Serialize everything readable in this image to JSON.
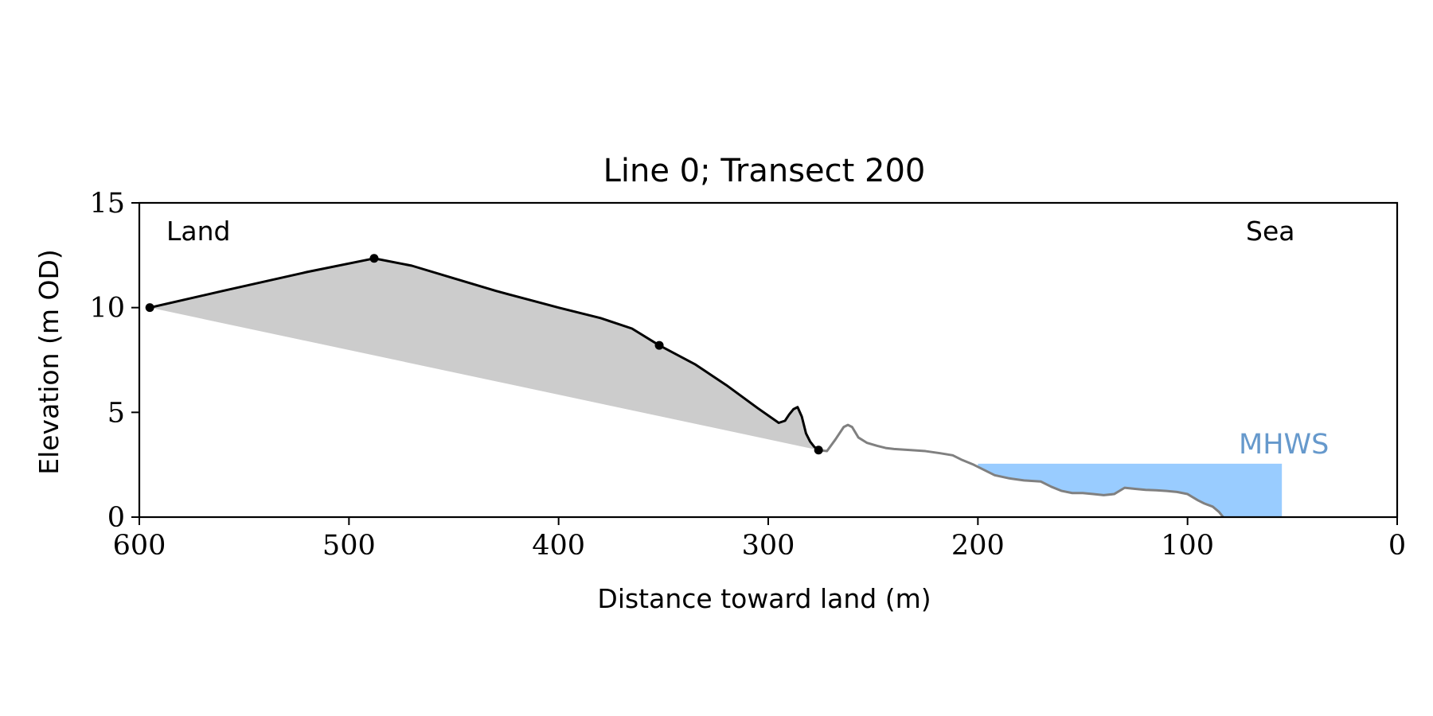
{
  "chart_data": {
    "type": "line",
    "title": "Line 0; Transect 200",
    "xlabel": "Distance toward land (m)",
    "ylabel": "Elevation (m OD)",
    "xlim": [
      600,
      0
    ],
    "ylim": [
      0,
      15
    ],
    "x_ticks": [
      600,
      500,
      400,
      300,
      200,
      100,
      0
    ],
    "y_ticks": [
      0,
      5,
      10,
      15
    ],
    "grid": false,
    "annotations": {
      "land": "Land",
      "sea": "Sea",
      "mhws": "MHWS"
    },
    "colors": {
      "profile_landward": "#000000",
      "profile_seaward": "#808080",
      "shaded_area": "#cccccc",
      "water": "#99ccff",
      "mhws_label": "#6699cc"
    },
    "mhws": {
      "elevation": 2.55,
      "x_range": [
        200,
        55
      ]
    },
    "key_points": [
      {
        "x": 595,
        "y": 10.0
      },
      {
        "x": 488,
        "y": 12.35
      },
      {
        "x": 352,
        "y": 8.2
      },
      {
        "x": 276,
        "y": 3.2
      }
    ],
    "series": [
      {
        "x": [
          595,
          560,
          520,
          488,
          470,
          450,
          430,
          400,
          380,
          365,
          352,
          335,
          320,
          305,
          295,
          292,
          290,
          288,
          286,
          284,
          282,
          280,
          278,
          276
        ],
        "y": [
          10.0,
          10.8,
          11.7,
          12.35,
          12.0,
          11.4,
          10.8,
          10.0,
          9.5,
          9.0,
          8.2,
          7.3,
          6.3,
          5.2,
          4.5,
          4.6,
          4.9,
          5.15,
          5.25,
          4.8,
          4.0,
          3.6,
          3.35,
          3.2
        ]
      },
      {
        "x": [
          276,
          272,
          268,
          264,
          262,
          260,
          257,
          253,
          248,
          244,
          240,
          232,
          225,
          218,
          212,
          208,
          202,
          198,
          192,
          185,
          178,
          170,
          165,
          160,
          155,
          150,
          145,
          140,
          135,
          130,
          125,
          120,
          115,
          110,
          105,
          100,
          95,
          92,
          88,
          85,
          83
        ],
        "y": [
          3.2,
          3.15,
          3.7,
          4.3,
          4.4,
          4.3,
          3.8,
          3.55,
          3.4,
          3.3,
          3.25,
          3.2,
          3.15,
          3.05,
          2.95,
          2.75,
          2.5,
          2.3,
          2.0,
          1.85,
          1.75,
          1.7,
          1.45,
          1.25,
          1.15,
          1.15,
          1.1,
          1.05,
          1.1,
          1.4,
          1.35,
          1.3,
          1.28,
          1.25,
          1.2,
          1.1,
          0.8,
          0.65,
          0.5,
          0.25,
          0.0
        ]
      }
    ]
  }
}
